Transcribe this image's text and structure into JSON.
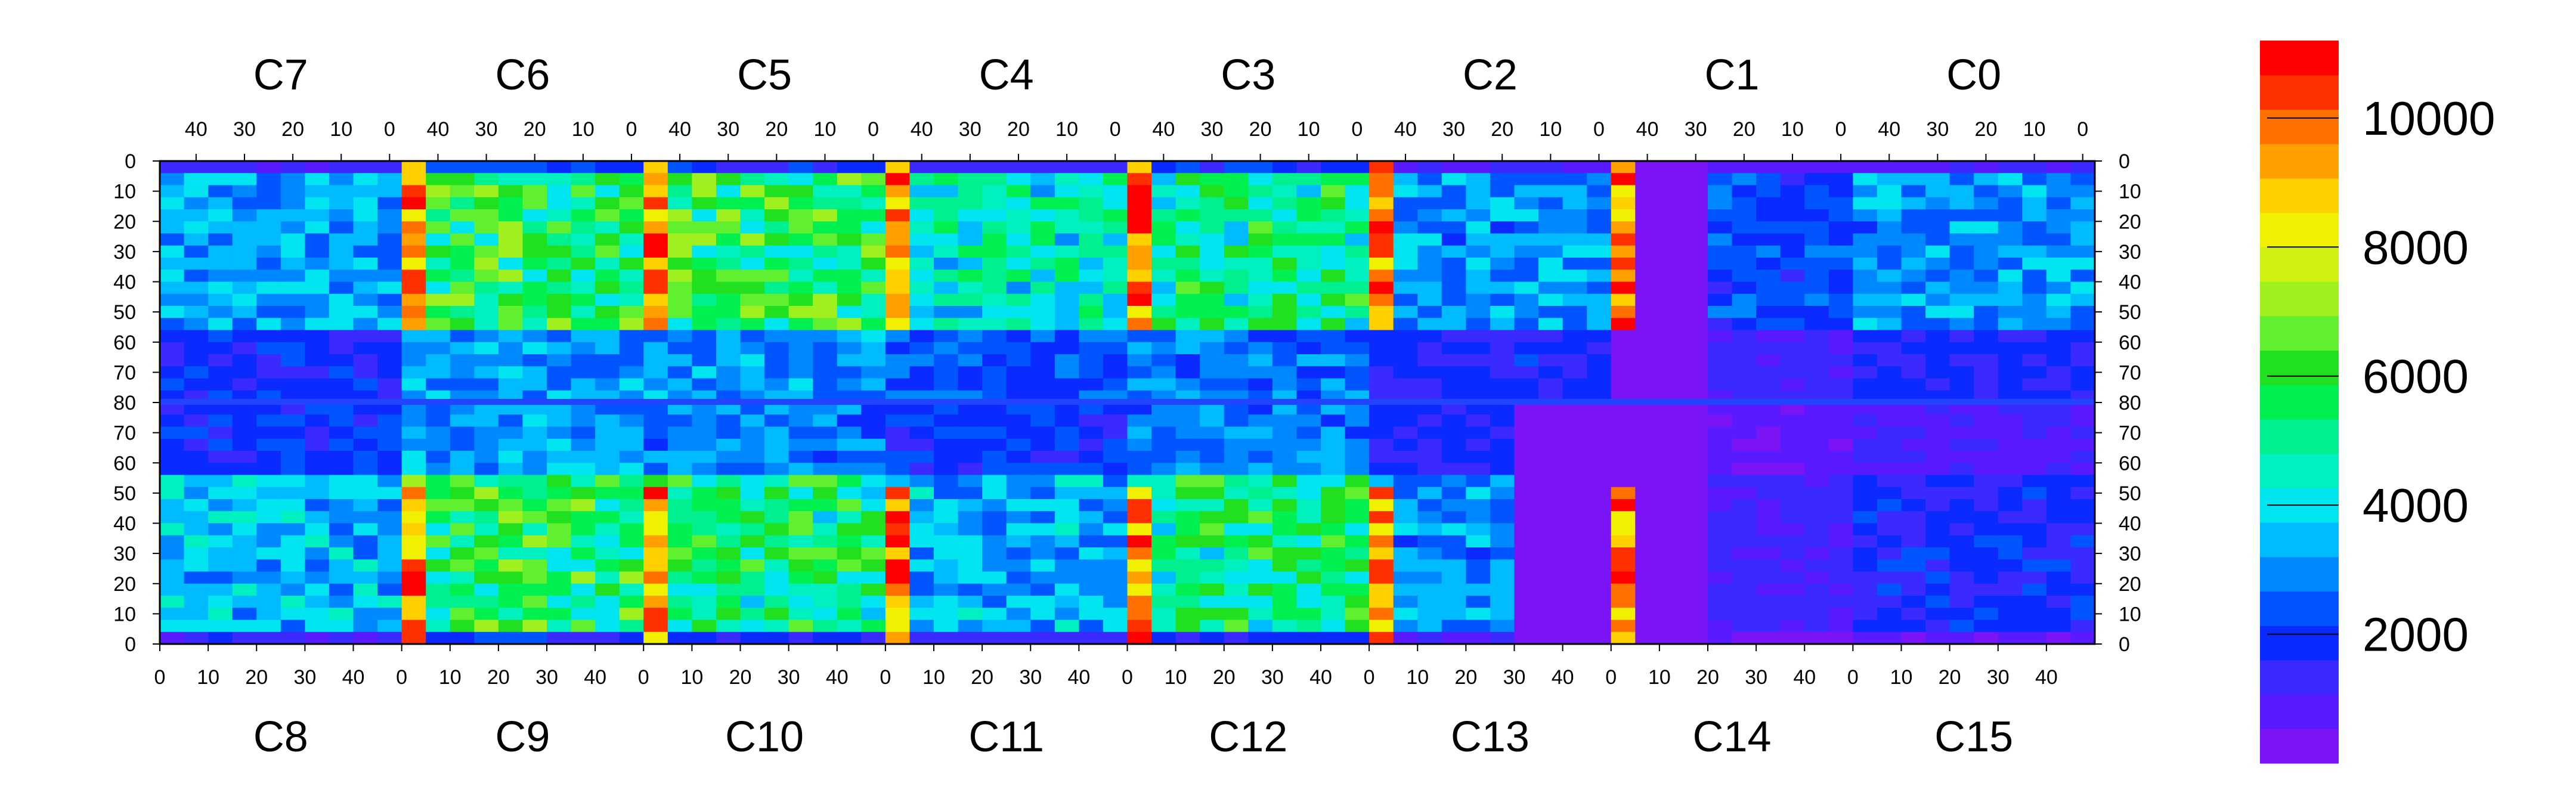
{
  "chart_data": {
    "type": "heatmap",
    "title": "",
    "zlim": [
      0,
      11200
    ],
    "colorbar": {
      "ticks": [
        2000,
        4000,
        6000,
        8000,
        10000
      ],
      "colors": [
        "#7a14f5",
        "#5a1aff",
        "#3a2aff",
        "#0a2aff",
        "#0055ff",
        "#0088ff",
        "#00bbff",
        "#00e5f0",
        "#00f0c0",
        "#00f090",
        "#00f050",
        "#20e020",
        "#60f030",
        "#a0f020",
        "#d0f010",
        "#f0f000",
        "#ffd000",
        "#ffa000",
        "#ff7000",
        "#ff3000",
        "#ff0000"
      ]
    },
    "top_row": {
      "chip_labels": [
        "C7",
        "C6",
        "C5",
        "C4",
        "C3",
        "C2",
        "C1",
        "C0"
      ],
      "tick_labels": [
        "40",
        "30",
        "20",
        "10",
        "0"
      ]
    },
    "bottom_row": {
      "chip_labels": [
        "C8",
        "C9",
        "C10",
        "C11",
        "C12",
        "C13",
        "C14",
        "C15"
      ],
      "tick_labels": [
        "0",
        "10",
        "20",
        "30",
        "40"
      ]
    },
    "y_tick_labels": [
      "0",
      "10",
      "20",
      "30",
      "40",
      "50",
      "60",
      "70",
      "80",
      "70",
      "60",
      "50",
      "40",
      "30",
      "20",
      "10",
      "0"
    ]
  }
}
